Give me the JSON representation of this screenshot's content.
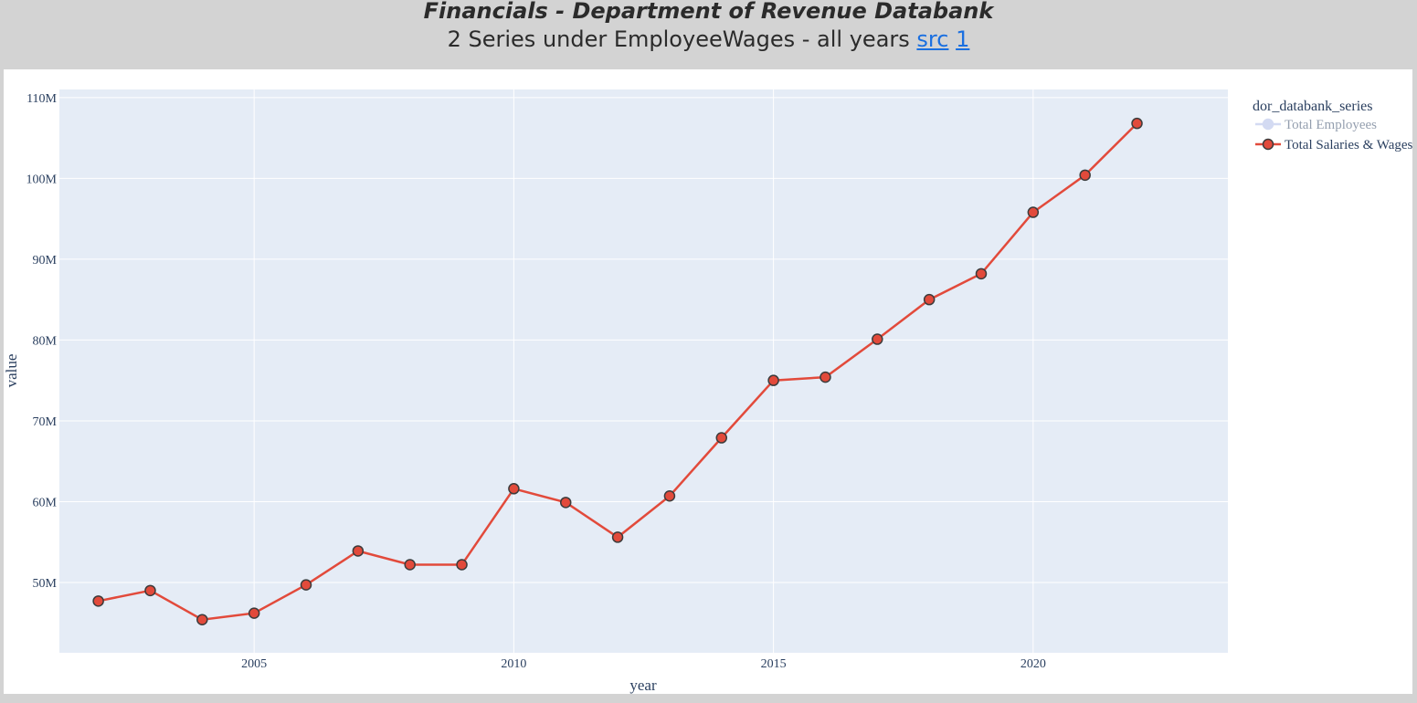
{
  "header": {
    "title": "Financials - Department of Revenue Databank",
    "subtitle_text": "2 Series under EmployeeWages - all years",
    "link_src": "src",
    "link_1": "1"
  },
  "colors": {
    "series_line": "#e24a3b",
    "marker_edge": "#3c3c3c",
    "plot_bg": "#e5ecf6",
    "legend_hidden_line": "#a9b6e6",
    "link": "#1a6fe0"
  },
  "chart_data": {
    "type": "line",
    "xlabel": "year",
    "ylabel": "value",
    "xlim": [
      2001.25,
      2023.75
    ],
    "ylim": [
      41300000,
      111000000
    ],
    "x_ticks": [
      2005,
      2010,
      2015,
      2020
    ],
    "y_ticks": [
      50000000,
      60000000,
      70000000,
      80000000,
      90000000,
      100000000,
      110000000
    ],
    "x_tick_labels": [
      "2005",
      "2010",
      "2015",
      "2020"
    ],
    "y_tick_labels": [
      "50M",
      "60M",
      "70M",
      "80M",
      "90M",
      "100M",
      "110M"
    ],
    "grid": true,
    "legend": {
      "title": "dor_databank_series",
      "placement": "top-right outside",
      "entries": [
        {
          "name": "Total Employees",
          "visible": false
        },
        {
          "name": "Total Salaries & Wages",
          "visible": true
        }
      ]
    },
    "series": [
      {
        "name": "Total Salaries & Wages",
        "x": [
          2002,
          2003,
          2004,
          2005,
          2006,
          2007,
          2008,
          2009,
          2010,
          2011,
          2012,
          2013,
          2014,
          2015,
          2016,
          2017,
          2018,
          2019,
          2020,
          2021,
          2022
        ],
        "values": [
          47700000,
          49000000,
          45400000,
          46200000,
          49700000,
          53900000,
          52200000,
          52200000,
          61600000,
          59900000,
          55600000,
          60700000,
          67900000,
          75000000,
          75400000,
          80100000,
          85000000,
          88200000,
          95800000,
          100400000,
          106800000
        ]
      }
    ]
  }
}
